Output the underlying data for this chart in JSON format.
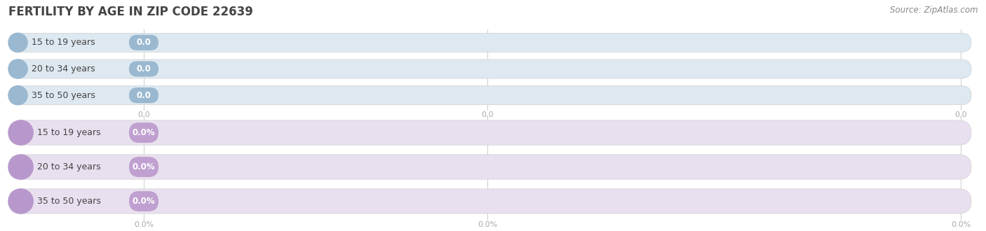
{
  "title": "FERTILITY BY AGE IN ZIP CODE 22639",
  "source": "Source: ZipAtlas.com",
  "background_color": "#ffffff",
  "top_section": {
    "categories": [
      "15 to 19 years",
      "20 to 34 years",
      "35 to 50 years"
    ],
    "values": [
      0.0,
      0.0,
      0.0
    ],
    "bar_bg_color": "#dde8f0",
    "bar_fill_color": "#9ab8d0",
    "label_color": "#444444",
    "value_bg_color": "#9ab8d0",
    "x_tick_labels": [
      "0.0",
      "0.0",
      "0.0"
    ],
    "is_percent": false
  },
  "bottom_section": {
    "categories": [
      "15 to 19 years",
      "20 to 34 years",
      "35 to 50 years"
    ],
    "values": [
      0.0,
      0.0,
      0.0
    ],
    "bar_bg_color": "#e8e0ee",
    "bar_fill_color": "#b898cc",
    "label_color": "#444444",
    "value_bg_color": "#c0a0d0",
    "x_tick_labels": [
      "0.0%",
      "0.0%",
      "0.0%"
    ],
    "is_percent": true
  },
  "title_fontsize": 12,
  "source_fontsize": 8.5,
  "label_fontsize": 9,
  "value_fontsize": 8.5,
  "tick_fontsize": 8,
  "title_color": "#444444",
  "source_color": "#888888",
  "tick_color": "#aaaaaa",
  "grid_color": "#cccccc",
  "bar_edge_color": "#cccccc"
}
